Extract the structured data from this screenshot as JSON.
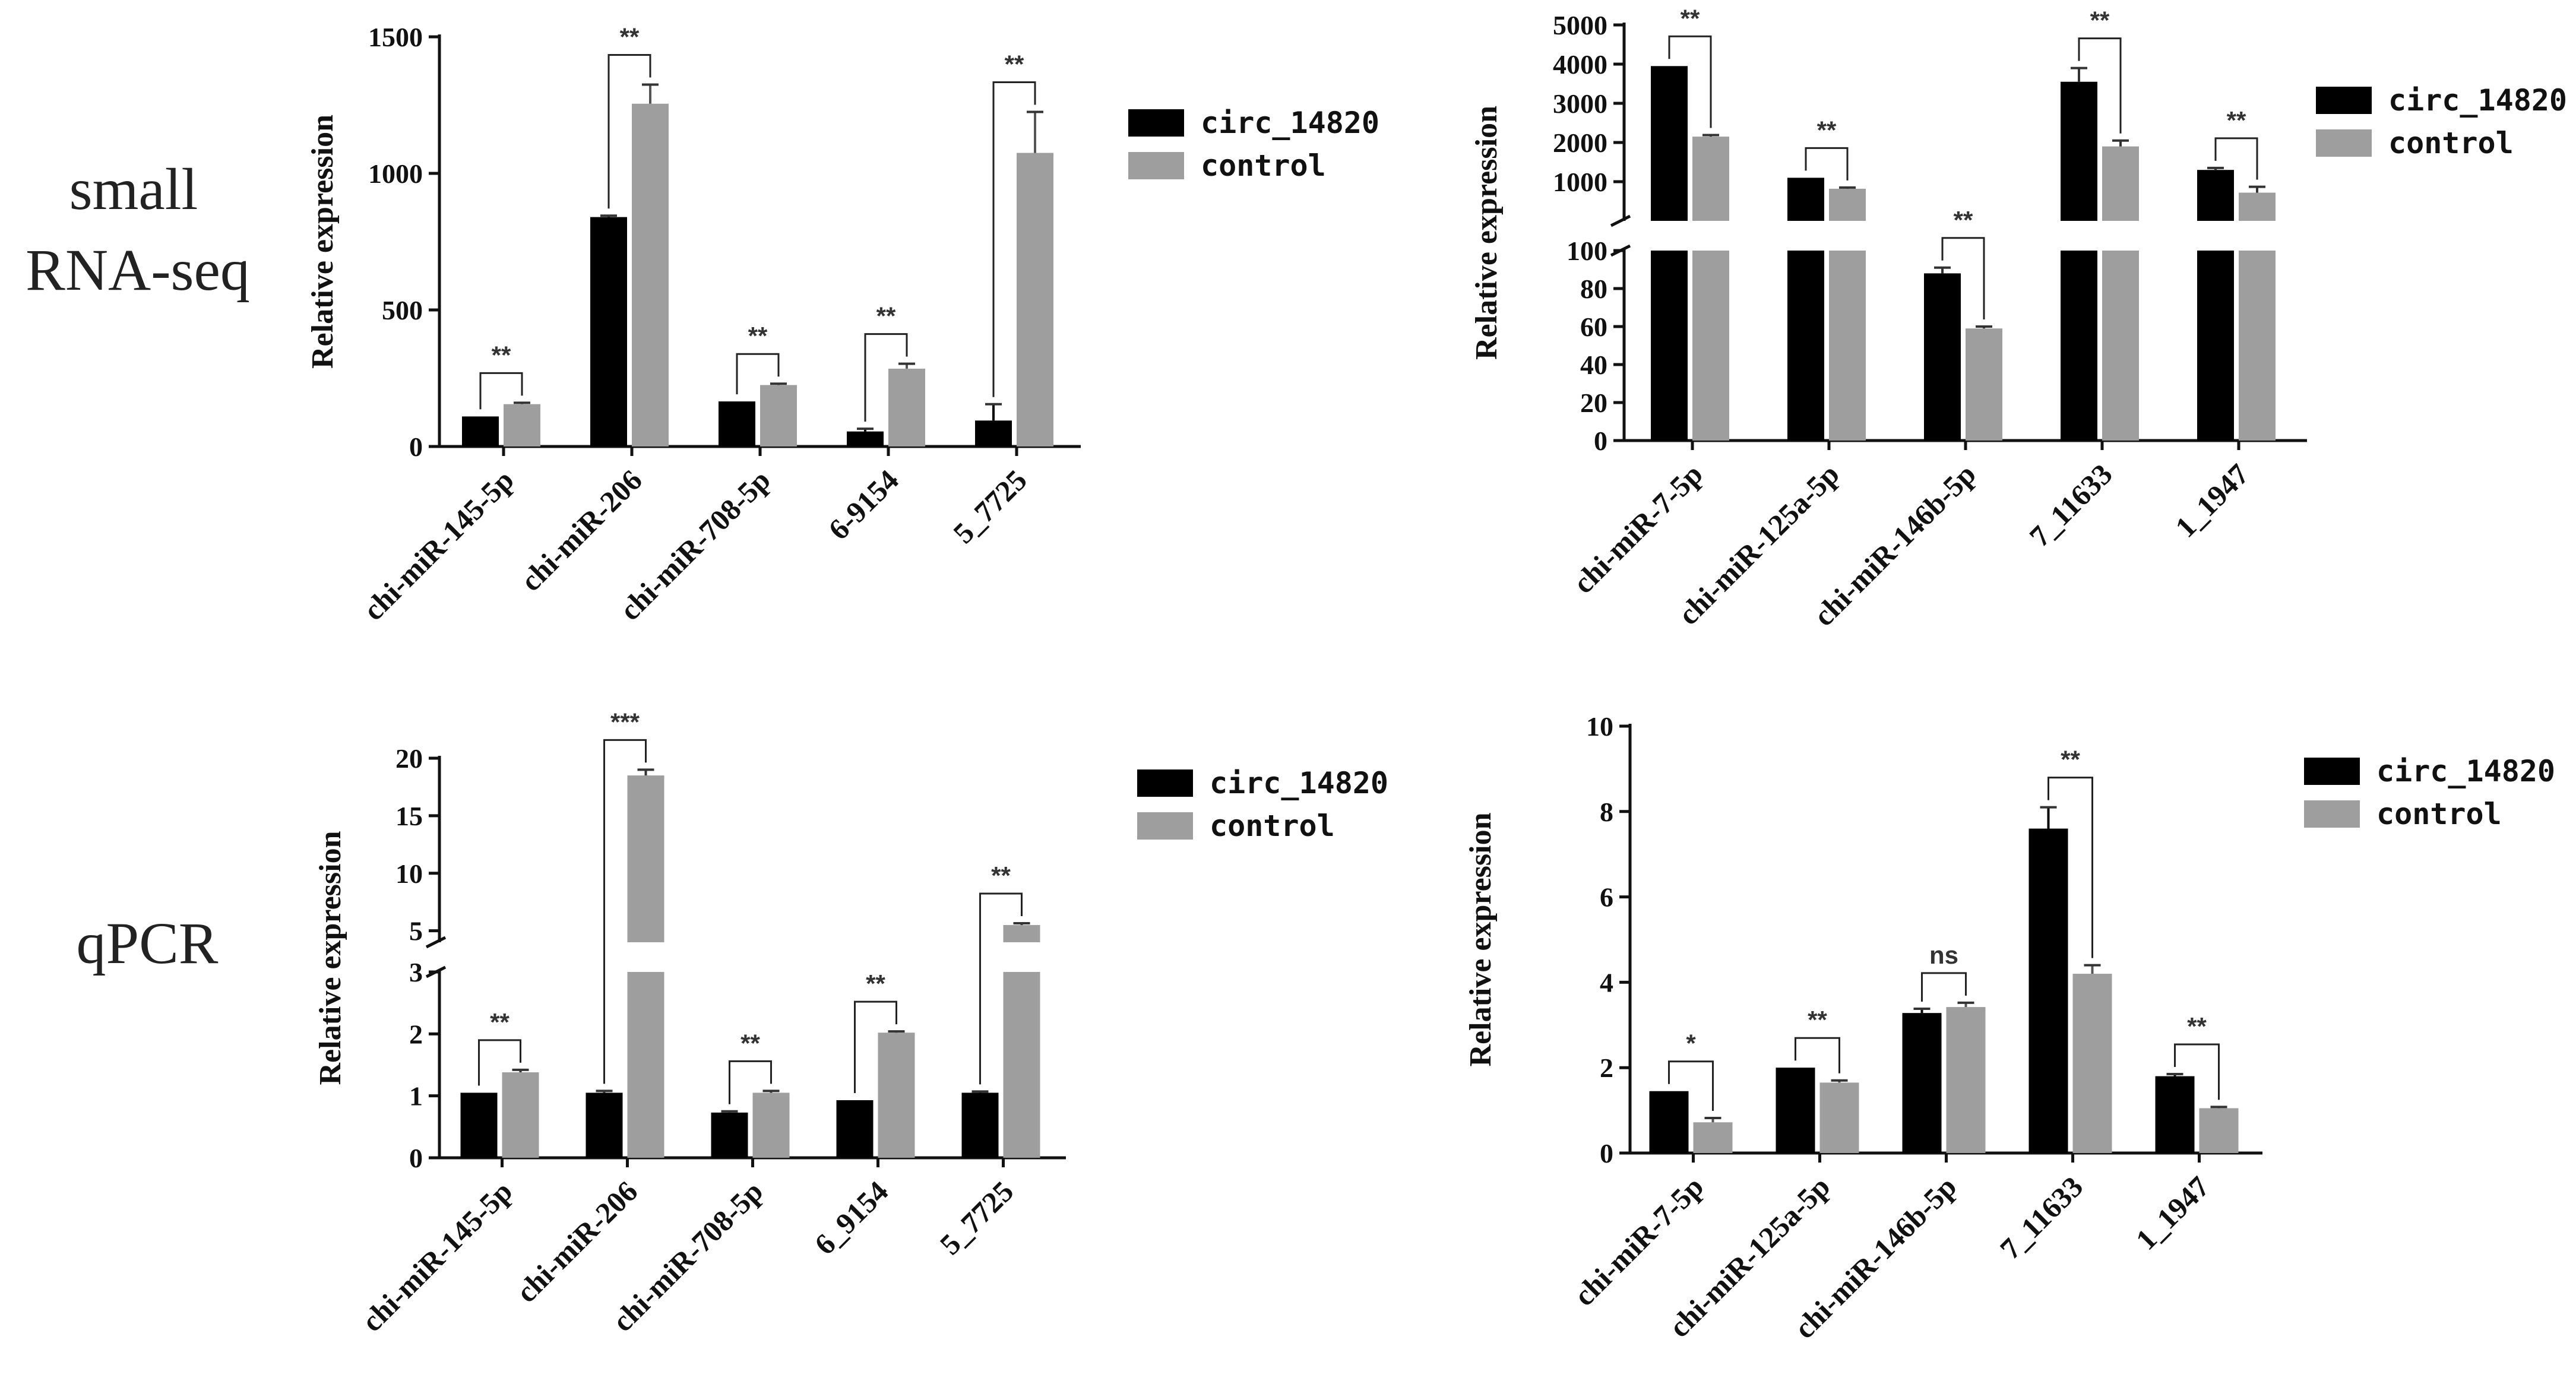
{
  "row_labels": {
    "small_rna_line1": "small",
    "small_rna_line2": "RNA-seq",
    "qpcr": "qPCR"
  },
  "colors": {
    "circ_14820": "#000000",
    "control": "#9e9e9e",
    "axis": "#111111"
  },
  "chart_data": [
    {
      "id": "A",
      "type": "bar",
      "title": "",
      "ylabel": "Relative expression",
      "ylim": [
        0,
        1500
      ],
      "yticks": [
        0,
        500,
        1000,
        1500
      ],
      "categories": [
        "chi-miR-145-5p",
        "chi-miR-206",
        "chi-miR-708-5p",
        "6-9154",
        "5_7725"
      ],
      "series": [
        {
          "name": "circ_14820",
          "values": [
            110,
            840,
            165,
            55,
            95
          ],
          "errors": [
            0,
            5,
            0,
            10,
            60
          ]
        },
        {
          "name": "control",
          "values": [
            155,
            1255,
            225,
            285,
            1075
          ],
          "errors": [
            5,
            70,
            5,
            18,
            150
          ]
        }
      ],
      "significance": [
        "**",
        "**",
        "**",
        "**",
        "**"
      ],
      "legend": [
        "circ_14820",
        "control"
      ],
      "legend_position": "right"
    },
    {
      "id": "B",
      "type": "bar",
      "title": "",
      "ylabel": "Relative expression",
      "axis_break": {
        "lower_range": [
          0,
          100
        ],
        "upper_range": [
          0,
          5000
        ]
      },
      "yticks_lower": [
        0,
        20,
        40,
        60,
        80,
        100
      ],
      "yticks_upper": [
        1000,
        2000,
        3000,
        4000,
        5000
      ],
      "categories": [
        "chi-miR-7-5p",
        "chi-miR-125a-5p",
        "chi-miR-146b-5p",
        "7_11633",
        "1_1947"
      ],
      "series": [
        {
          "name": "circ_14820",
          "values": [
            3950,
            1100,
            88,
            3550,
            1300
          ],
          "errors": [
            0,
            0,
            3,
            350,
            50
          ]
        },
        {
          "name": "control",
          "values": [
            2150,
            820,
            59,
            1900,
            720
          ],
          "errors": [
            40,
            30,
            1,
            150,
            150
          ]
        }
      ],
      "significance": [
        "**",
        "**",
        "**",
        "**",
        "**"
      ],
      "legend": [
        "circ_14820",
        "control"
      ],
      "legend_position": "right"
    },
    {
      "id": "C",
      "type": "bar",
      "title": "",
      "ylabel": "Relative expression",
      "axis_break": {
        "lower_range": [
          0,
          3
        ],
        "upper_range": [
          4,
          20
        ]
      },
      "yticks_lower": [
        0,
        1,
        2,
        3
      ],
      "yticks_upper": [
        5,
        10,
        15,
        20
      ],
      "categories": [
        "chi-miR-145-5p",
        "chi-miR-206",
        "chi-miR-708-5p",
        "6_9154",
        "5_7725"
      ],
      "series": [
        {
          "name": "circ_14820",
          "values": [
            1.05,
            1.05,
            0.73,
            0.93,
            1.05
          ],
          "errors": [
            0,
            0.03,
            0.02,
            0,
            0.02
          ]
        },
        {
          "name": "control",
          "values": [
            1.38,
            18.5,
            1.05,
            2.02,
            5.5
          ],
          "errors": [
            0.04,
            0.5,
            0.03,
            0.02,
            0.15
          ]
        }
      ],
      "significance": [
        "**",
        "***",
        "**",
        "**",
        "**"
      ],
      "legend": [
        "circ_14820",
        "control"
      ],
      "legend_position": "right"
    },
    {
      "id": "D",
      "type": "bar",
      "title": "",
      "ylabel": "Relative expression",
      "ylim": [
        0,
        10
      ],
      "yticks": [
        0,
        2,
        4,
        6,
        8,
        10
      ],
      "categories": [
        "chi-miR-7-5p",
        "chi-miR-125a-5p",
        "chi-miR-146b-5p",
        "7_11633",
        "1_1947"
      ],
      "series": [
        {
          "name": "circ_14820",
          "values": [
            1.45,
            2.0,
            3.28,
            7.6,
            1.8
          ],
          "errors": [
            0,
            0,
            0.1,
            0.5,
            0.05
          ]
        },
        {
          "name": "control",
          "values": [
            0.72,
            1.65,
            3.42,
            4.2,
            1.05
          ],
          "errors": [
            0.1,
            0.05,
            0.1,
            0.2,
            0.03
          ]
        }
      ],
      "significance": [
        "*",
        "**",
        "ns",
        "**",
        "**"
      ],
      "legend": [
        "circ_14820",
        "control"
      ],
      "legend_position": "right"
    }
  ]
}
